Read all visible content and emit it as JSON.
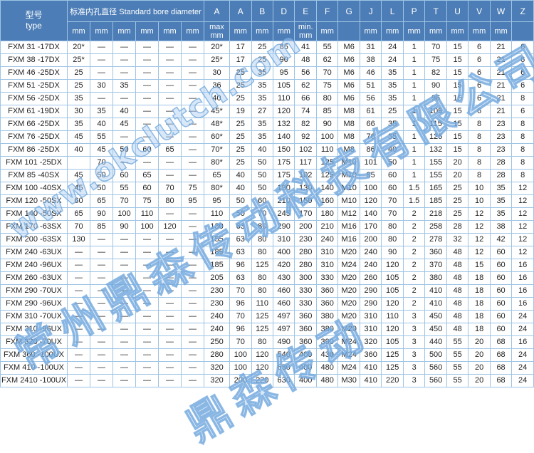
{
  "watermarks": {
    "url": "www.okclutch.com",
    "company": "常州鼎森传动科技有限公司",
    "short": "鼎森传动"
  },
  "colors": {
    "header_bg": "#4c7db6",
    "border_light": "#9ec4e4",
    "border_outer": "#5e8ec2",
    "watermark_blue": "#a9cdea",
    "body_text": "#222222"
  },
  "table": {
    "header": {
      "type_label": "型号\ntype",
      "bore_group_label": "标准内孔直径 Standard bore diameter",
      "bore_sub": [
        "mm",
        "mm",
        "mm",
        "mm",
        "mm",
        "mm"
      ],
      "dims": [
        {
          "letter": "A",
          "sub": "max\nmm"
        },
        {
          "letter": "A",
          "sub": "mm"
        },
        {
          "letter": "B",
          "sub": "mm"
        },
        {
          "letter": "D",
          "sub": "mm"
        },
        {
          "letter": "E",
          "sub": "min.\nmm"
        },
        {
          "letter": "F",
          "sub": "mm"
        },
        {
          "letter": "G",
          "sub": ""
        },
        {
          "letter": "J",
          "sub": "mm"
        },
        {
          "letter": "L",
          "sub": "mm"
        },
        {
          "letter": "P",
          "sub": "mm"
        },
        {
          "letter": "T",
          "sub": "mm"
        },
        {
          "letter": "U",
          "sub": "mm"
        },
        {
          "letter": "V",
          "sub": "mm"
        },
        {
          "letter": "W",
          "sub": "mm"
        },
        {
          "letter": "Z",
          "sub": ""
        }
      ]
    },
    "rows": [
      {
        "type": "FXM 31 -17DX",
        "bores": [
          "20*",
          "—",
          "—",
          "—",
          "—",
          "—"
        ],
        "dims": [
          "20*",
          "17",
          "25",
          "85",
          "41",
          "55",
          "M6",
          "31",
          "24",
          "1",
          "70",
          "15",
          "6",
          "21",
          "6"
        ]
      },
      {
        "type": "FXM 38 -17DX",
        "bores": [
          "25*",
          "—",
          "—",
          "—",
          "—",
          "—"
        ],
        "dims": [
          "25*",
          "17",
          "25",
          "90",
          "48",
          "62",
          "M6",
          "38",
          "24",
          "1",
          "75",
          "15",
          "6",
          "21",
          "6"
        ]
      },
      {
        "type": "FXM 46 -25DX",
        "bores": [
          "25",
          "—",
          "—",
          "—",
          "—",
          "—"
        ],
        "dims": [
          "30",
          "25",
          "35",
          "95",
          "56",
          "70",
          "M6",
          "46",
          "35",
          "1",
          "82",
          "15",
          "6",
          "21",
          "6"
        ]
      },
      {
        "type": "FXM 51 -25DX",
        "bores": [
          "25",
          "30",
          "35",
          "—",
          "—",
          "—"
        ],
        "dims": [
          "36",
          "25",
          "35",
          "105",
          "62",
          "75",
          "M6",
          "51",
          "35",
          "1",
          "90",
          "15",
          "6",
          "21",
          "6"
        ]
      },
      {
        "type": "FXM 56 -25DX",
        "bores": [
          "35",
          "—",
          "—",
          "—",
          "—",
          "—"
        ],
        "dims": [
          "40",
          "25",
          "35",
          "110",
          "66",
          "80",
          "M6",
          "56",
          "35",
          "1",
          "96",
          "15",
          "6",
          "21",
          "8"
        ]
      },
      {
        "type": "FXM 61 -19DX",
        "bores": [
          "30",
          "35",
          "40",
          "—",
          "—",
          "—"
        ],
        "dims": [
          "45*",
          "19",
          "27",
          "120",
          "74",
          "85",
          "M8",
          "61",
          "25",
          "1",
          "105",
          "15",
          "6",
          "21",
          "6"
        ]
      },
      {
        "type": "FXM 66 -25DX",
        "bores": [
          "35",
          "40",
          "45",
          "—",
          "—",
          "—"
        ],
        "dims": [
          "48*",
          "25",
          "35",
          "132",
          "82",
          "90",
          "M8",
          "66",
          "35",
          "1",
          "115",
          "15",
          "8",
          "23",
          "8"
        ]
      },
      {
        "type": "FXM 76 -25DX",
        "bores": [
          "45",
          "55",
          "—",
          "—",
          "—",
          "—"
        ],
        "dims": [
          "60*",
          "25",
          "35",
          "140",
          "92",
          "100",
          "M8",
          "76",
          "35",
          "1",
          "125",
          "15",
          "8",
          "23",
          "8"
        ]
      },
      {
        "type": "FXM 86 -25DX",
        "bores": [
          "40",
          "45",
          "50",
          "60",
          "65",
          "—"
        ],
        "dims": [
          "70*",
          "25",
          "40",
          "150",
          "102",
          "110",
          "M8",
          "86",
          "40",
          "1",
          "132",
          "15",
          "8",
          "23",
          "8"
        ]
      },
      {
        "type": "FXM 101 -25DX",
        "bores": [
          "",
          "70",
          "—",
          "—",
          "—",
          "—"
        ],
        "dims": [
          "80*",
          "25",
          "50",
          "175",
          "117",
          "125",
          "M10",
          "101",
          "50",
          "1",
          "155",
          "20",
          "8",
          "28",
          "8"
        ]
      },
      {
        "type": "FXM 85 -40SX",
        "bores": [
          "45",
          "50",
          "60",
          "65",
          "—",
          "—"
        ],
        "dims": [
          "65",
          "40",
          "50",
          "175",
          "102",
          "125",
          "M10",
          "85",
          "60",
          "1",
          "155",
          "20",
          "8",
          "28",
          "8"
        ]
      },
      {
        "type": "FXM 100 -40SX",
        "bores": [
          "45",
          "50",
          "55",
          "60",
          "70",
          "75"
        ],
        "dims": [
          "80*",
          "40",
          "50",
          "190",
          "130",
          "140",
          "M10",
          "100",
          "60",
          "1.5",
          "165",
          "25",
          "10",
          "35",
          "12"
        ]
      },
      {
        "type": "FXM 120 -50SX",
        "bores": [
          "60",
          "65",
          "70",
          "75",
          "80",
          "95"
        ],
        "dims": [
          "95",
          "50",
          "60",
          "210",
          "150",
          "160",
          "M10",
          "120",
          "70",
          "1.5",
          "185",
          "25",
          "10",
          "35",
          "12"
        ]
      },
      {
        "type": "FXM 140 -50SX",
        "bores": [
          "65",
          "90",
          "100",
          "110",
          "—",
          "—"
        ],
        "dims": [
          "110",
          "50",
          "70",
          "245",
          "170",
          "180",
          "M12",
          "140",
          "70",
          "2",
          "218",
          "25",
          "12",
          "35",
          "12"
        ]
      },
      {
        "type": "FXM 170 -63SX",
        "bores": [
          "70",
          "85",
          "90",
          "100",
          "120",
          "—"
        ],
        "dims": [
          "130",
          "63",
          "80",
          "290",
          "200",
          "210",
          "M16",
          "170",
          "80",
          "2",
          "258",
          "28",
          "12",
          "38",
          "12"
        ]
      },
      {
        "type": "FXM 200 -63SX",
        "bores": [
          "130",
          "—",
          "—",
          "—",
          "—",
          "—"
        ],
        "dims": [
          "155",
          "63",
          "80",
          "310",
          "230",
          "240",
          "M16",
          "200",
          "80",
          "2",
          "278",
          "32",
          "12",
          "42",
          "12"
        ]
      },
      {
        "type": "FXM 240 -63UX",
        "bores": [
          "—",
          "—",
          "—",
          "—",
          "—",
          "—"
        ],
        "dims": [
          "185",
          "63",
          "80",
          "400",
          "280",
          "310",
          "M20",
          "240",
          "90",
          "2",
          "360",
          "48",
          "12",
          "60",
          "12"
        ]
      },
      {
        "type": "FXM 240 -96UX",
        "bores": [
          "—",
          "—",
          "—",
          "—",
          "—",
          "—"
        ],
        "dims": [
          "185",
          "96",
          "125",
          "420",
          "280",
          "310",
          "M24",
          "240",
          "120",
          "2",
          "370",
          "48",
          "15",
          "60",
          "16"
        ]
      },
      {
        "type": "FXM 260 -63UX",
        "bores": [
          "—",
          "—",
          "—",
          "—",
          "—",
          "—"
        ],
        "dims": [
          "205",
          "63",
          "80",
          "430",
          "300",
          "330",
          "M20",
          "260",
          "105",
          "2",
          "380",
          "48",
          "18",
          "60",
          "16"
        ]
      },
      {
        "type": "FXM 290 -70UX",
        "bores": [
          "—",
          "—",
          "—",
          "—",
          "—",
          "—"
        ],
        "dims": [
          "230",
          "70",
          "80",
          "460",
          "330",
          "360",
          "M20",
          "290",
          "105",
          "2",
          "410",
          "48",
          "18",
          "60",
          "16"
        ]
      },
      {
        "type": "FXM 290 -96UX",
        "bores": [
          "—",
          "—",
          "—",
          "—",
          "—",
          "—"
        ],
        "dims": [
          "230",
          "96",
          "110",
          "460",
          "330",
          "360",
          "M20",
          "290",
          "120",
          "2",
          "410",
          "48",
          "18",
          "60",
          "16"
        ]
      },
      {
        "type": "FXM 310 -70UX",
        "bores": [
          "—",
          "—",
          "—",
          "—",
          "—",
          "—"
        ],
        "dims": [
          "240",
          "70",
          "125",
          "497",
          "360",
          "380",
          "M20",
          "310",
          "110",
          "3",
          "450",
          "48",
          "18",
          "60",
          "24"
        ]
      },
      {
        "type": "FXM 310 -96UX",
        "bores": [
          "—",
          "—",
          "—",
          "—",
          "—",
          "—"
        ],
        "dims": [
          "240",
          "96",
          "125",
          "497",
          "360",
          "380",
          "M20",
          "310",
          "120",
          "3",
          "450",
          "48",
          "18",
          "60",
          "24"
        ]
      },
      {
        "type": "FXM 320 -70UX",
        "bores": [
          "—",
          "—",
          "—",
          "—",
          "—",
          "—"
        ],
        "dims": [
          "250",
          "70",
          "80",
          "490",
          "360",
          "390",
          "M24",
          "320",
          "105",
          "3",
          "440",
          "55",
          "20",
          "68",
          "16"
        ]
      },
      {
        "type": "FXM 360 -100UX",
        "bores": [
          "—",
          "—",
          "—",
          "—",
          "—",
          "—"
        ],
        "dims": [
          "280",
          "100",
          "120",
          "540",
          "400",
          "430",
          "M24",
          "360",
          "125",
          "3",
          "500",
          "55",
          "20",
          "68",
          "24"
        ]
      },
      {
        "type": "FXM 410 -100UX",
        "bores": [
          "—",
          "—",
          "—",
          "—",
          "—",
          "—"
        ],
        "dims": [
          "320",
          "100",
          "120",
          "630",
          "400",
          "480",
          "M24",
          "410",
          "125",
          "3",
          "560",
          "55",
          "20",
          "68",
          "24"
        ]
      },
      {
        "type": "FXM 2410 -100UX",
        "bores": [
          "—",
          "—",
          "—",
          "—",
          "—",
          "—"
        ],
        "dims": [
          "320",
          "200",
          "220",
          "630",
          "400",
          "480",
          "M30",
          "410",
          "220",
          "3",
          "560",
          "55",
          "20",
          "68",
          "24"
        ]
      }
    ]
  }
}
